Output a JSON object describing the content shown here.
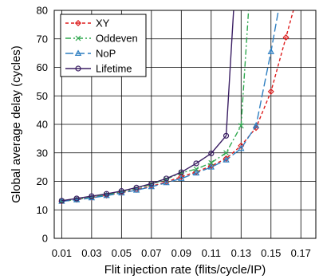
{
  "chart_data": {
    "type": "line",
    "title": "",
    "xlabel": "Flit injection rate (flits/cycle/IP)",
    "ylabel": "Global average delay (cycles)",
    "xlim": [
      0.005,
      0.18
    ],
    "ylim": [
      0,
      80
    ],
    "xticks": [
      "0.01",
      "0.03",
      "0.05",
      "0.07",
      "0.09",
      "0.11",
      "0.13",
      "0.15",
      "0.17"
    ],
    "yticks": [
      "0",
      "10",
      "20",
      "30",
      "40",
      "50",
      "60",
      "70",
      "80"
    ],
    "grid": true,
    "legend_position": "top-left",
    "series": [
      {
        "name": "XY",
        "color": "#dd1c1c",
        "dash": "dashed",
        "marker": "open-diamond",
        "x": [
          0.01,
          0.02,
          0.03,
          0.04,
          0.05,
          0.06,
          0.07,
          0.08,
          0.09,
          0.1,
          0.11,
          0.12,
          0.13,
          0.14,
          0.15,
          0.16,
          0.165
        ],
        "y": [
          13.0,
          13.6,
          14.3,
          15.1,
          16.0,
          17.1,
          18.3,
          19.8,
          21.6,
          23.3,
          25.4,
          28.0,
          32.5,
          38.8,
          51.5,
          70.5,
          80
        ]
      },
      {
        "name": "Oddeven",
        "color": "#2fa84f",
        "dash": "dash-dot",
        "marker": "x",
        "x": [
          0.01,
          0.02,
          0.03,
          0.04,
          0.05,
          0.06,
          0.07,
          0.08,
          0.09,
          0.1,
          0.11,
          0.12,
          0.13,
          0.135
        ],
        "y": [
          13.0,
          13.7,
          14.4,
          15.3,
          16.3,
          17.5,
          19.0,
          20.8,
          23.0,
          24.3,
          26.5,
          30.0,
          39.5,
          80
        ]
      },
      {
        "name": "NoP",
        "color": "#2f7fc1",
        "dash": "long-dash",
        "marker": "open-triangle",
        "x": [
          0.01,
          0.02,
          0.03,
          0.04,
          0.05,
          0.06,
          0.07,
          0.08,
          0.09,
          0.1,
          0.11,
          0.12,
          0.13,
          0.14,
          0.15,
          0.155
        ],
        "y": [
          13.0,
          13.5,
          14.2,
          15.0,
          15.9,
          16.9,
          18.1,
          19.5,
          21.0,
          22.9,
          25.0,
          27.5,
          31.5,
          39.5,
          65.5,
          80
        ]
      },
      {
        "name": "Lifetime",
        "color": "#3a1e63",
        "dash": "solid",
        "marker": "open-circle",
        "x": [
          0.01,
          0.02,
          0.03,
          0.04,
          0.05,
          0.06,
          0.07,
          0.08,
          0.09,
          0.1,
          0.11,
          0.12,
          0.125
        ],
        "y": [
          13.2,
          14.0,
          14.8,
          15.6,
          16.6,
          17.8,
          19.2,
          21.0,
          23.2,
          26.3,
          29.8,
          36.0,
          80
        ]
      }
    ]
  }
}
